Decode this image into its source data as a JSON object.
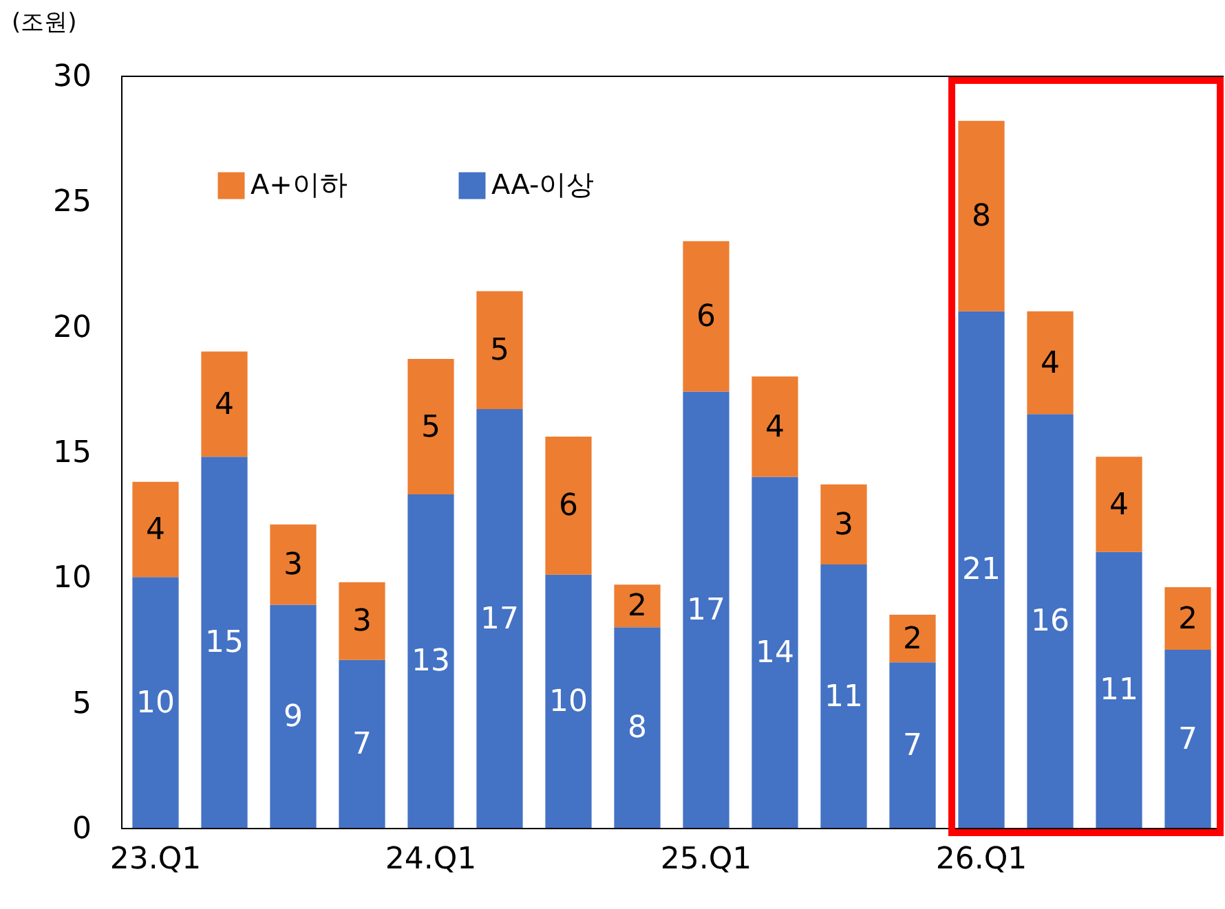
{
  "chart_data": {
    "type": "bar",
    "stacked": true,
    "ylabel": "(조원)",
    "categories": [
      "23.Q1",
      null,
      null,
      null,
      "24.Q1",
      null,
      null,
      null,
      "25.Q1",
      null,
      null,
      null,
      "26.Q1",
      null,
      null,
      null
    ],
    "series": [
      {
        "name": "AA-이상",
        "color": "#4472c4",
        "values": [
          10.0,
          14.8,
          8.9,
          6.7,
          13.3,
          16.7,
          10.1,
          8.0,
          17.4,
          14.0,
          10.5,
          6.6,
          20.6,
          16.5,
          11.0,
          7.1
        ],
        "value_labels": [
          "10",
          "15",
          "9",
          "7",
          "13",
          "17",
          "10",
          "8",
          "17",
          "14",
          "11",
          "7",
          "21",
          "16",
          "11",
          "7"
        ]
      },
      {
        "name": "A+이하",
        "color": "#ed7d31",
        "values": [
          3.8,
          4.2,
          3.2,
          3.1,
          5.4,
          4.7,
          5.5,
          1.7,
          6.0,
          4.0,
          3.2,
          1.9,
          7.6,
          4.1,
          3.8,
          2.5
        ],
        "value_labels": [
          "4",
          "4",
          "3",
          "3",
          "5",
          "5",
          "6",
          "2",
          "6",
          "4",
          "3",
          "2",
          "8",
          "4",
          "4",
          "2"
        ]
      }
    ],
    "ylim": [
      0,
      30
    ],
    "yticks": [
      0,
      5,
      10,
      15,
      20,
      25,
      30
    ],
    "grid": false,
    "legend": "top left"
  }
}
